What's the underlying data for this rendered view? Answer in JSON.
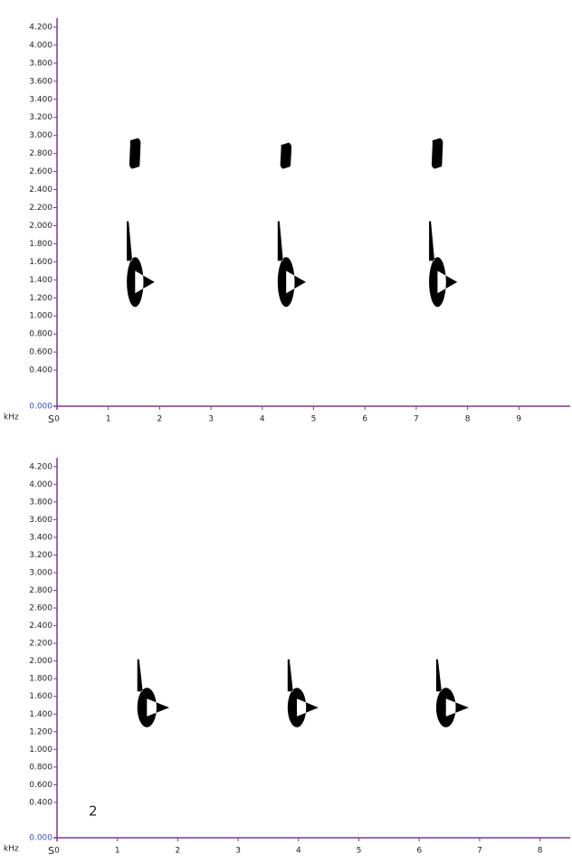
{
  "chart_data": [
    {
      "type": "spectrogram",
      "x_label": "S",
      "y_label": "kHz",
      "axis_color": "#7a3c8c",
      "origin_label_color": "#3a4fc0",
      "color": "#000000",
      "xlim": [
        0,
        10
      ],
      "ylim": [
        0,
        4.3
      ],
      "xticks": [
        0,
        1,
        2,
        3,
        4,
        5,
        6,
        7,
        8,
        9
      ],
      "yticks": [
        {
          "value": 0,
          "label": "0.000"
        },
        {
          "value": 0.4,
          "label": "0.400"
        },
        {
          "value": 0.6,
          "label": "0.600"
        },
        {
          "value": 0.8,
          "label": "0.800"
        },
        {
          "value": 1.0,
          "label": "1.000"
        },
        {
          "value": 1.2,
          "label": "1.200"
        },
        {
          "value": 1.4,
          "label": "1.400"
        },
        {
          "value": 1.6,
          "label": "1.600"
        },
        {
          "value": 1.8,
          "label": "1.800"
        },
        {
          "value": 2.0,
          "label": "2.000"
        },
        {
          "value": 2.2,
          "label": "2.200"
        },
        {
          "value": 2.4,
          "label": "2.400"
        },
        {
          "value": 2.6,
          "label": "2.600"
        },
        {
          "value": 2.8,
          "label": "2.800"
        },
        {
          "value": 3.0,
          "label": "3.000"
        },
        {
          "value": 3.2,
          "label": "3.200"
        },
        {
          "value": 3.4,
          "label": "3.400"
        },
        {
          "value": 3.6,
          "label": "3.600"
        },
        {
          "value": 3.8,
          "label": "3.800"
        },
        {
          "value": 4.0,
          "label": "4.000"
        },
        {
          "value": 4.2,
          "label": "4.200"
        }
      ],
      "calls": [
        {
          "x": [
            1.41,
            1.63
          ],
          "y": [
            2.65,
            2.95
          ]
        },
        {
          "x": [
            1.36,
            1.9
          ],
          "y": [
            1.1,
            2.05
          ]
        },
        {
          "x": [
            4.35,
            4.57
          ],
          "y": [
            2.65,
            2.9
          ]
        },
        {
          "x": [
            4.3,
            4.85
          ],
          "y": [
            1.1,
            2.05
          ]
        },
        {
          "x": [
            7.3,
            7.52
          ],
          "y": [
            2.65,
            2.95
          ]
        },
        {
          "x": [
            7.25,
            7.8
          ],
          "y": [
            1.1,
            2.05
          ]
        }
      ]
    },
    {
      "type": "spectrogram",
      "x_label": "S",
      "y_label": "kHz",
      "axis_color": "#7a3c8c",
      "origin_label_color": "#3a4fc0",
      "color": "#000000",
      "annotation": "2",
      "xlim": [
        0,
        8.5
      ],
      "ylim": [
        0,
        4.3
      ],
      "xticks": [
        0,
        1,
        2,
        3,
        4,
        5,
        6,
        7,
        8
      ],
      "yticks": [
        {
          "value": 0,
          "label": "0.000"
        },
        {
          "value": 0.4,
          "label": "0.400"
        },
        {
          "value": 0.6,
          "label": "0.600"
        },
        {
          "value": 0.8,
          "label": "0.800"
        },
        {
          "value": 1.0,
          "label": "1.000"
        },
        {
          "value": 1.2,
          "label": "1.200"
        },
        {
          "value": 1.4,
          "label": "1.400"
        },
        {
          "value": 1.6,
          "label": "1.600"
        },
        {
          "value": 1.8,
          "label": "1.800"
        },
        {
          "value": 2.0,
          "label": "2.000"
        },
        {
          "value": 2.2,
          "label": "2.200"
        },
        {
          "value": 2.4,
          "label": "2.400"
        },
        {
          "value": 2.6,
          "label": "2.600"
        },
        {
          "value": 2.8,
          "label": "2.800"
        },
        {
          "value": 3.0,
          "label": "3.000"
        },
        {
          "value": 3.2,
          "label": "3.200"
        },
        {
          "value": 3.4,
          "label": "3.400"
        },
        {
          "value": 3.6,
          "label": "3.600"
        },
        {
          "value": 3.8,
          "label": "3.800"
        },
        {
          "value": 4.0,
          "label": "4.000"
        },
        {
          "value": 4.2,
          "label": "4.200"
        }
      ],
      "calls": [
        {
          "x": [
            1.33,
            1.86
          ],
          "y": [
            1.25,
            2.02
          ]
        },
        {
          "x": [
            3.82,
            4.33
          ],
          "y": [
            1.25,
            2.02
          ]
        },
        {
          "x": [
            6.28,
            6.82
          ],
          "y": [
            1.25,
            2.02
          ]
        }
      ]
    }
  ]
}
